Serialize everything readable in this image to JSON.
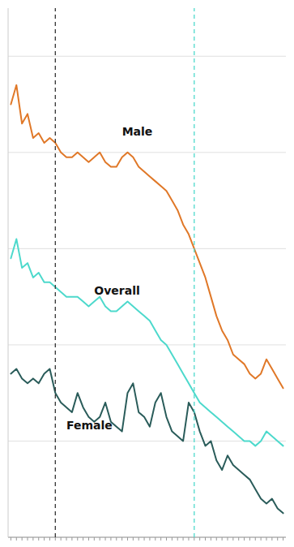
{
  "chart_data": {
    "type": "line",
    "x": [
      0,
      1,
      2,
      3,
      4,
      5,
      6,
      7,
      8,
      9,
      10,
      11,
      12,
      13,
      14,
      15,
      16,
      17,
      18,
      19,
      20,
      21,
      22,
      23,
      24,
      25,
      26,
      27,
      28,
      29,
      30,
      31,
      32,
      33,
      34,
      35,
      36,
      37,
      38,
      39,
      40,
      41,
      42,
      43,
      44,
      45,
      46,
      47,
      48,
      49
    ],
    "series": [
      {
        "color": "#E07828",
        "values": [
          90,
          94,
          86,
          88,
          83,
          84,
          82,
          83,
          82,
          80,
          79,
          79,
          80,
          79,
          78,
          79,
          80,
          78,
          77,
          77,
          79,
          80,
          79,
          77,
          76,
          75,
          74,
          73,
          72,
          70,
          68,
          65,
          63,
          60,
          57,
          54,
          50,
          46,
          43,
          41,
          38,
          37,
          36,
          34,
          33,
          34,
          37,
          35,
          33,
          31
        ]
      },
      {
        "color": "#4DD9CC",
        "values": [
          58,
          62,
          56,
          57,
          54,
          55,
          53,
          53,
          52,
          51,
          50,
          50,
          50,
          49,
          48,
          49,
          50,
          48,
          47,
          47,
          48,
          49,
          48,
          47,
          46,
          45,
          43,
          41,
          40,
          38,
          36,
          34,
          32,
          30,
          28,
          27,
          26,
          25,
          24,
          23,
          22,
          21,
          20,
          20,
          19,
          20,
          22,
          21,
          20,
          19
        ]
      },
      {
        "color": "#2A5C5A",
        "values": [
          34,
          35,
          33,
          32,
          33,
          32,
          34,
          35,
          30,
          28,
          27,
          26,
          30,
          27,
          25,
          24,
          25,
          28,
          24,
          23,
          22,
          30,
          32,
          26,
          25,
          23,
          28,
          30,
          25,
          22,
          21,
          20,
          28,
          26,
          22,
          19,
          20,
          16,
          14,
          17,
          15,
          14,
          13,
          12,
          10,
          8,
          7,
          8,
          6,
          5
        ]
      }
    ],
    "reference_lines": [
      {
        "x": 8,
        "color": "#333333",
        "line_style": "dashed"
      },
      {
        "x": 33,
        "color": "#4DD9CC",
        "line_style": "dashed"
      }
    ],
    "annotations": [
      {
        "text": "Male",
        "x": 20,
        "y": 83
      },
      {
        "text": "Overall",
        "x": 15,
        "y": 50
      },
      {
        "text": "Female",
        "x": 10,
        "y": 22
      }
    ],
    "xlim": [
      -0.5,
      49.5
    ],
    "xticks": [
      0,
      1,
      2,
      3,
      4,
      5,
      6,
      7,
      8,
      9,
      10,
      11,
      12,
      13,
      14,
      15,
      16,
      17,
      18,
      19,
      20,
      21,
      22,
      23,
      24,
      25,
      26,
      27,
      28,
      29,
      30,
      31,
      32,
      33,
      34,
      35,
      36,
      37,
      38,
      39,
      40,
      41,
      42,
      43,
      44,
      45,
      46,
      47,
      48,
      49
    ],
    "ylim": [
      0,
      110
    ],
    "yticks": [
      0,
      20,
      40,
      60,
      80,
      100
    ],
    "grid": true,
    "tick_labels": false
  }
}
